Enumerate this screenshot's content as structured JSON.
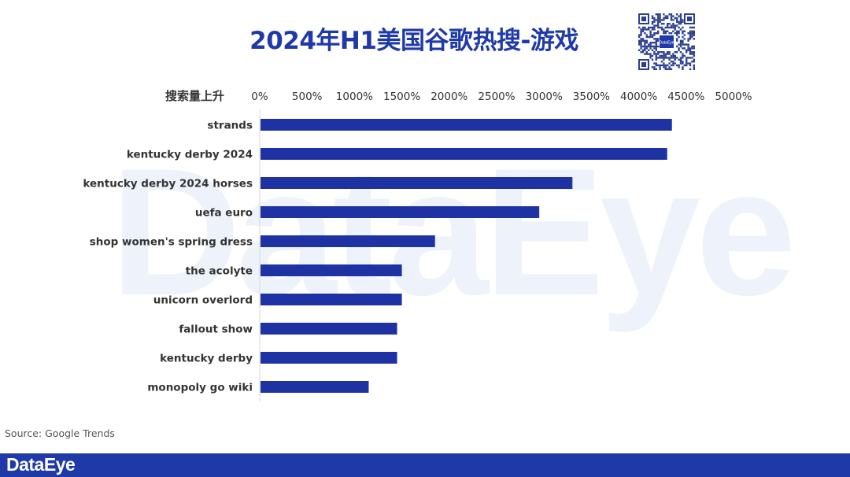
{
  "header": {
    "title": "2024年H1美国谷歌热搜-游戏",
    "qr_center_text": "DataEye"
  },
  "watermark_text": "DataEye",
  "colors": {
    "bar": "#1e32a4",
    "brand": "#1f3aa8",
    "text": "#333333"
  },
  "chart_data": {
    "type": "bar",
    "orientation": "horizontal",
    "title": "2024年H1美国谷歌热搜-游戏",
    "category_axis_label": "搜索量上升",
    "categories": [
      "strands",
      "kentucky derby 2024",
      "kentucky derby 2024 horses",
      "uefa euro",
      "shop women's spring dress",
      "the acolyte",
      "unicorn overlord",
      "fallout show",
      "kentucky derby",
      "monopoly go wiki"
    ],
    "values": [
      4350,
      4300,
      3300,
      2950,
      1850,
      1500,
      1500,
      1450,
      1450,
      1150
    ],
    "unit": "%",
    "xlim": [
      0,
      5000
    ],
    "ticks": [
      0,
      500,
      1000,
      1500,
      2000,
      2500,
      3000,
      3500,
      4000,
      4500,
      5000
    ],
    "tick_labels": [
      "0%",
      "500%",
      "1000%",
      "1500%",
      "2000%",
      "2500%",
      "3000%",
      "3500%",
      "4000%",
      "4500%",
      "5000%"
    ],
    "axis_position": "top",
    "grid": false,
    "legend": "none"
  },
  "footer": {
    "source": "Source: Google Trends",
    "logo": "DataEye"
  }
}
